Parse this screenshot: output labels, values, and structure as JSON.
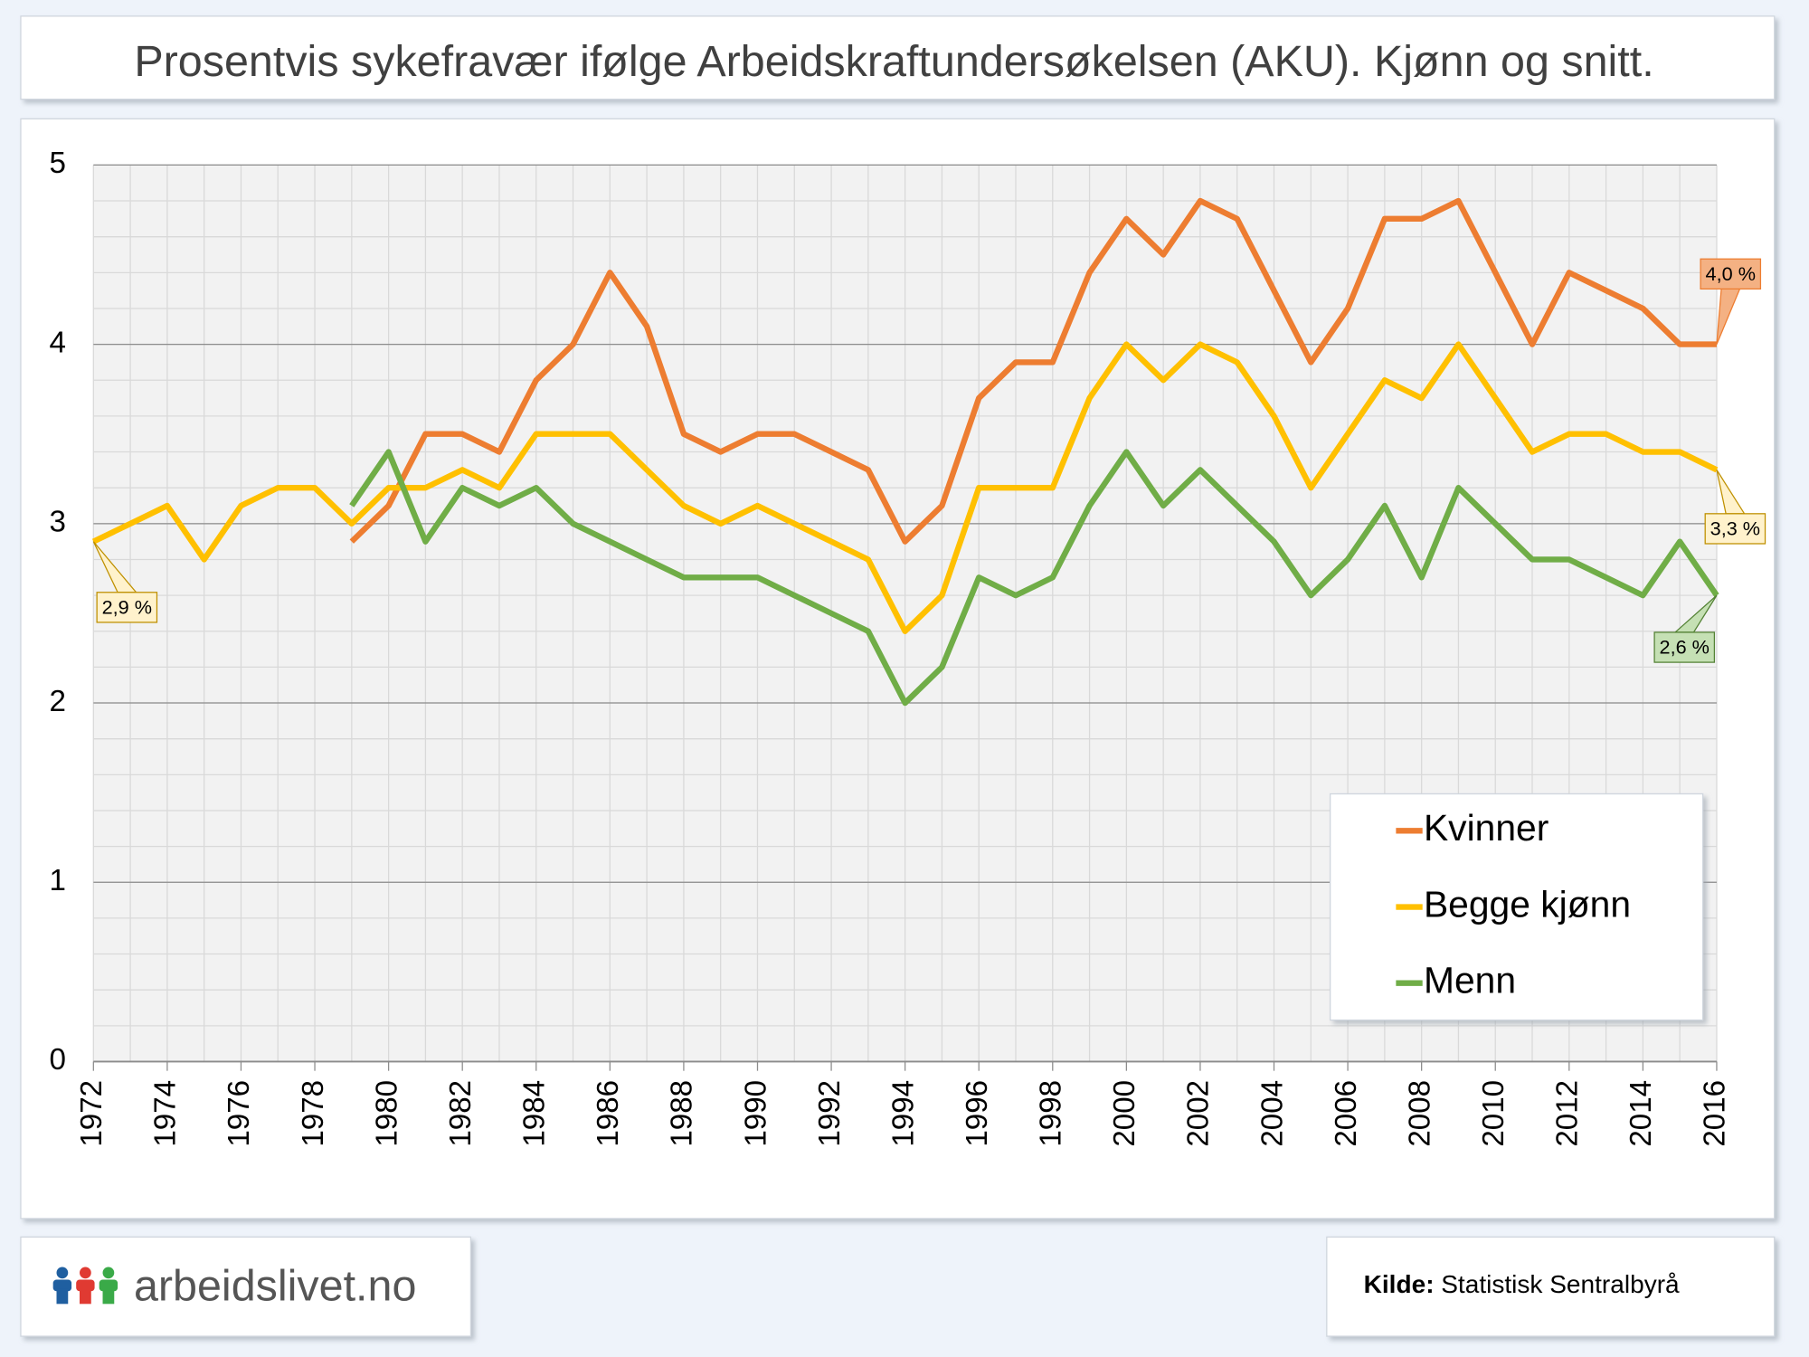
{
  "chart_data": {
    "type": "line",
    "title": "Prosentvis sykefravær ifølge Arbeidskraftundersøkelsen (AKU). Kjønn og snitt.",
    "x": [
      1972,
      1973,
      1974,
      1975,
      1976,
      1977,
      1978,
      1979,
      1980,
      1981,
      1982,
      1983,
      1984,
      1985,
      1986,
      1987,
      1988,
      1989,
      1990,
      1991,
      1992,
      1993,
      1994,
      1995,
      1996,
      1997,
      1998,
      1999,
      2000,
      2001,
      2002,
      2003,
      2004,
      2005,
      2006,
      2007,
      2008,
      2009,
      2010,
      2011,
      2012,
      2013,
      2014,
      2015,
      2016
    ],
    "series": [
      {
        "name": "Kvinner",
        "color": "#ed7d31",
        "values": [
          null,
          null,
          null,
          null,
          null,
          null,
          null,
          2.9,
          3.1,
          3.5,
          3.5,
          3.4,
          3.8,
          4.0,
          4.4,
          4.1,
          3.5,
          3.4,
          3.5,
          3.5,
          3.4,
          3.3,
          2.9,
          3.1,
          3.7,
          3.9,
          3.9,
          4.4,
          4.7,
          4.5,
          4.8,
          4.7,
          4.3,
          3.9,
          4.2,
          4.7,
          4.7,
          4.8,
          4.4,
          4.0,
          4.4,
          4.3,
          4.2,
          4.0,
          4.0
        ],
        "value_labels": [
          null,
          null,
          null,
          null,
          null,
          null,
          null,
          null,
          null,
          null,
          null,
          null,
          null,
          null,
          null,
          null,
          null,
          null,
          null,
          null,
          null,
          null,
          null,
          null,
          null,
          null,
          null,
          null,
          null,
          null,
          null,
          null,
          null,
          null,
          null,
          null,
          null,
          null,
          null,
          null,
          null,
          null,
          null,
          null,
          "4,0 %"
        ]
      },
      {
        "name": "Begge kjønn",
        "color": "#ffc000",
        "values": [
          2.9,
          3.0,
          3.1,
          2.8,
          3.1,
          3.2,
          3.2,
          3.0,
          3.2,
          3.2,
          3.3,
          3.2,
          3.5,
          3.5,
          3.5,
          3.3,
          3.1,
          3.0,
          3.1,
          3.0,
          2.9,
          2.8,
          2.4,
          2.6,
          3.2,
          3.2,
          3.2,
          3.7,
          4.0,
          3.8,
          4.0,
          3.9,
          3.6,
          3.2,
          3.5,
          3.8,
          3.7,
          4.0,
          3.7,
          3.4,
          3.5,
          3.5,
          3.4,
          3.4,
          3.3
        ],
        "value_labels": [
          "2,9 %",
          null,
          null,
          null,
          null,
          null,
          null,
          null,
          null,
          null,
          null,
          null,
          null,
          null,
          null,
          null,
          null,
          null,
          null,
          null,
          null,
          null,
          null,
          null,
          null,
          null,
          null,
          null,
          null,
          null,
          null,
          null,
          null,
          null,
          null,
          null,
          null,
          null,
          null,
          null,
          null,
          null,
          null,
          null,
          "3,3 %"
        ]
      },
      {
        "name": "Menn",
        "color": "#70ad47",
        "values": [
          null,
          null,
          null,
          null,
          null,
          null,
          null,
          3.1,
          3.4,
          2.9,
          3.2,
          3.1,
          3.2,
          3.0,
          2.9,
          2.8,
          2.7,
          2.7,
          2.7,
          2.6,
          2.5,
          2.4,
          2.0,
          2.2,
          2.7,
          2.6,
          2.7,
          3.1,
          3.4,
          3.1,
          3.3,
          3.1,
          2.9,
          2.6,
          2.8,
          3.1,
          2.7,
          3.2,
          3.0,
          2.8,
          2.8,
          2.7,
          2.6,
          2.9,
          2.6
        ],
        "value_labels": [
          null,
          null,
          null,
          null,
          null,
          null,
          null,
          null,
          null,
          null,
          null,
          null,
          null,
          null,
          null,
          null,
          null,
          null,
          null,
          null,
          null,
          null,
          null,
          null,
          null,
          null,
          null,
          null,
          null,
          null,
          null,
          null,
          null,
          null,
          null,
          null,
          null,
          null,
          null,
          null,
          null,
          null,
          null,
          null,
          "2,6 %"
        ]
      }
    ],
    "xlim": [
      1972,
      2016
    ],
    "xticks": [
      1972,
      1974,
      1976,
      1978,
      1980,
      1982,
      1984,
      1986,
      1988,
      1990,
      1992,
      1994,
      1996,
      1998,
      2000,
      2002,
      2004,
      2006,
      2008,
      2010,
      2012,
      2014,
      2016
    ],
    "ylim": [
      0,
      5
    ],
    "yticks": [
      0,
      1,
      2,
      3,
      4,
      5
    ],
    "grid": true,
    "minor_grid": true,
    "legend": "bottom-right"
  },
  "footer": {
    "logo_text": "arbeidslivet.no",
    "source_label": "Kilde:",
    "source": "Statistisk Sentralbyrå"
  }
}
